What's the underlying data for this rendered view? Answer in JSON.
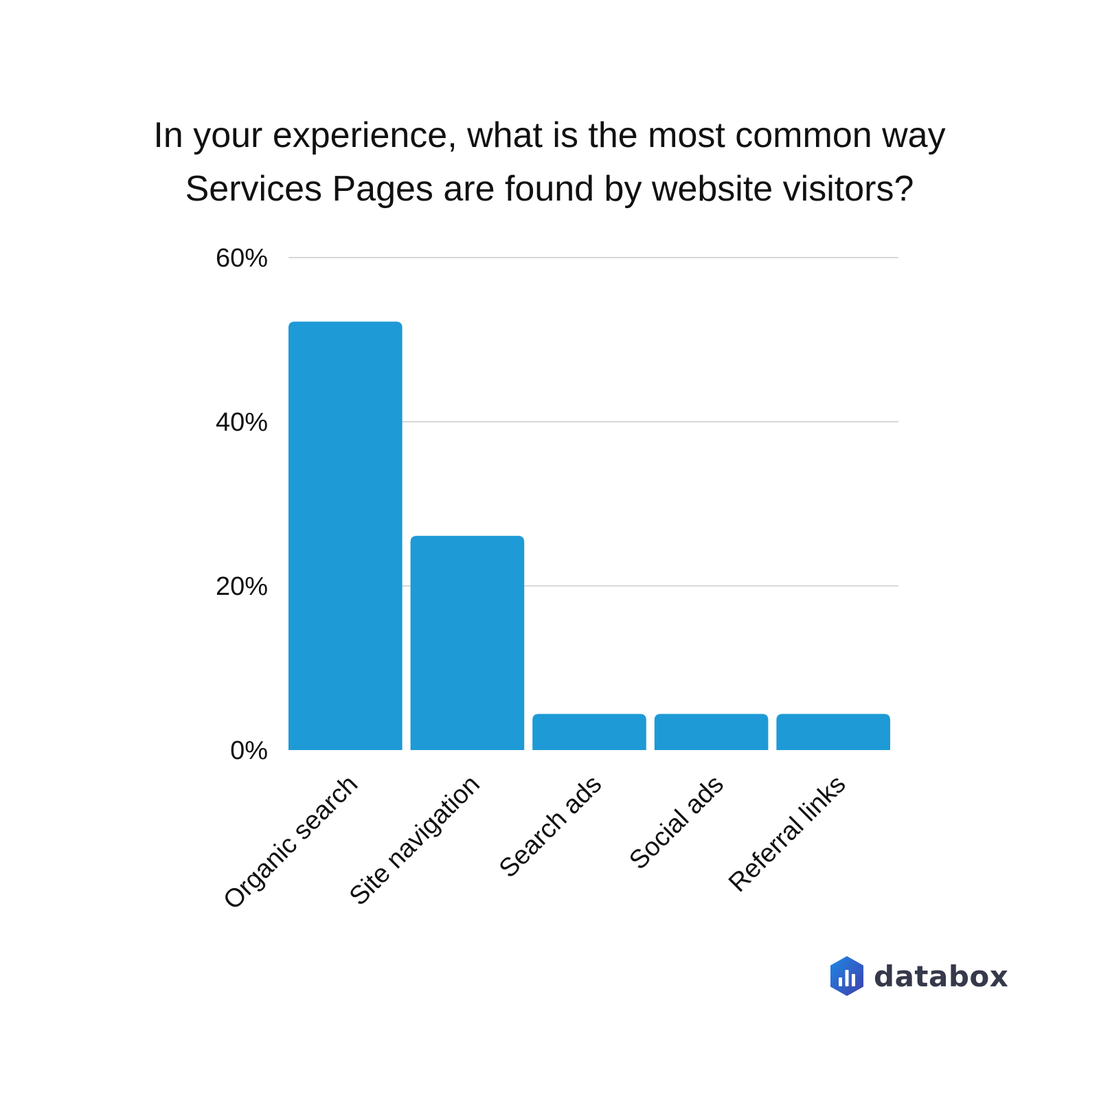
{
  "chart_data": {
    "type": "bar",
    "title_lines": [
      "In your experience, what is the most common way",
      "Services Pages are found by website visitors?"
    ],
    "categories": [
      "Organic search",
      "Site navigation",
      "Search ads",
      "Social ads",
      "Referral links"
    ],
    "values": [
      52.2,
      26.1,
      4.4,
      4.4,
      4.4
    ],
    "yticks": [
      "0%",
      "20%",
      "40%",
      "60%"
    ],
    "ytick_values": [
      0,
      20,
      40,
      60
    ],
    "ylim": [
      0,
      60
    ],
    "grid": true,
    "bar_color": "#1e9ad6",
    "grid_color": "#cccccc"
  },
  "brand": {
    "name": "databox",
    "logo_icon": "databox-hexagon-logo"
  }
}
